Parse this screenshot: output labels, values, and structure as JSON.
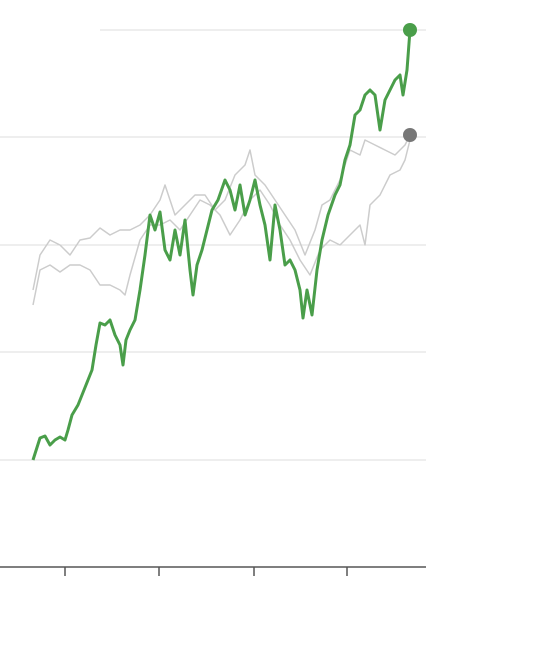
{
  "chart_data": {
    "type": "line",
    "xlim": [
      0,
      426
    ],
    "xticks": [
      65,
      159,
      254,
      347
    ],
    "ylim": [
      0,
      537
    ],
    "yticks": [
      107,
      215,
      322,
      430,
      537
    ],
    "grid": true,
    "series": [
      {
        "color": "#cccccc",
        "x": [
          33,
          40,
          50,
          60,
          70,
          80,
          90,
          100,
          110,
          120,
          130,
          140,
          150,
          160,
          165,
          175,
          185,
          195,
          205,
          215,
          225,
          235,
          245,
          250,
          255,
          265,
          275,
          285,
          295,
          305,
          315,
          322,
          330,
          340,
          350,
          360,
          365,
          375,
          385,
          395,
          405,
          410
        ],
        "values": [
          277,
          312,
          327,
          322,
          312,
          327,
          329,
          339,
          332,
          337,
          337,
          342,
          352,
          367,
          382,
          352,
          362,
          372,
          372,
          357,
          367,
          392,
          402,
          417,
          392,
          382,
          367,
          352,
          337,
          312,
          337,
          362,
          367,
          387,
          417,
          412,
          427,
          422,
          417,
          412,
          422,
          432
        ],
        "marker_color": "#777777"
      },
      {
        "color": "#cccccc",
        "x": [
          33,
          40,
          50,
          60,
          70,
          80,
          90,
          100,
          110,
          120,
          125,
          130,
          140,
          150,
          160,
          170,
          180,
          190,
          200,
          210,
          220,
          230,
          240,
          250,
          260,
          270,
          280,
          290,
          300,
          310,
          320,
          330,
          340,
          350,
          360,
          365,
          370,
          380,
          390,
          400,
          405,
          410
        ],
        "values": [
          262,
          297,
          302,
          295,
          302,
          302,
          297,
          282,
          282,
          277,
          272,
          292,
          327,
          342,
          342,
          347,
          337,
          352,
          367,
          362,
          352,
          332,
          347,
          367,
          377,
          362,
          342,
          327,
          307,
          292,
          317,
          327,
          322,
          332,
          342,
          322,
          362,
          372,
          392,
          397,
          407,
          427
        ]
      },
      {
        "color": "#4a9e4a",
        "x": [
          33,
          40,
          45,
          50,
          55,
          60,
          65,
          68,
          72,
          78,
          82,
          88,
          92,
          96,
          100,
          105,
          110,
          115,
          120,
          123,
          126,
          130,
          135,
          140,
          145,
          150,
          155,
          160,
          165,
          170,
          175,
          180,
          185,
          190,
          193,
          197,
          202,
          207,
          212,
          218,
          225,
          230,
          235,
          240,
          245,
          250,
          255,
          260,
          265,
          270,
          275,
          280,
          285,
          290,
          295,
          300,
          303,
          307,
          312,
          317,
          322,
          328,
          335,
          340,
          345,
          350,
          355,
          360,
          365,
          370,
          375,
          380,
          385,
          390,
          395,
          400,
          403,
          407,
          410
        ],
        "values": [
          107,
          129,
          131,
          122,
          127,
          130,
          127,
          137,
          152,
          162,
          172,
          187,
          197,
          222,
          244,
          242,
          247,
          232,
          222,
          202,
          227,
          237,
          247,
          277,
          312,
          352,
          337,
          355,
          317,
          307,
          337,
          312,
          347,
          297,
          272,
          302,
          317,
          337,
          357,
          367,
          387,
          377,
          357,
          382,
          352,
          367,
          387,
          362,
          342,
          307,
          362,
          337,
          302,
          307,
          297,
          277,
          249,
          277,
          252,
          297,
          327,
          352,
          372,
          382,
          407,
          422,
          452,
          457,
          472,
          477,
          472,
          437,
          467,
          477,
          487,
          492,
          472,
          497,
          537
        ],
        "marker_color": "#4a9e4a"
      }
    ]
  }
}
